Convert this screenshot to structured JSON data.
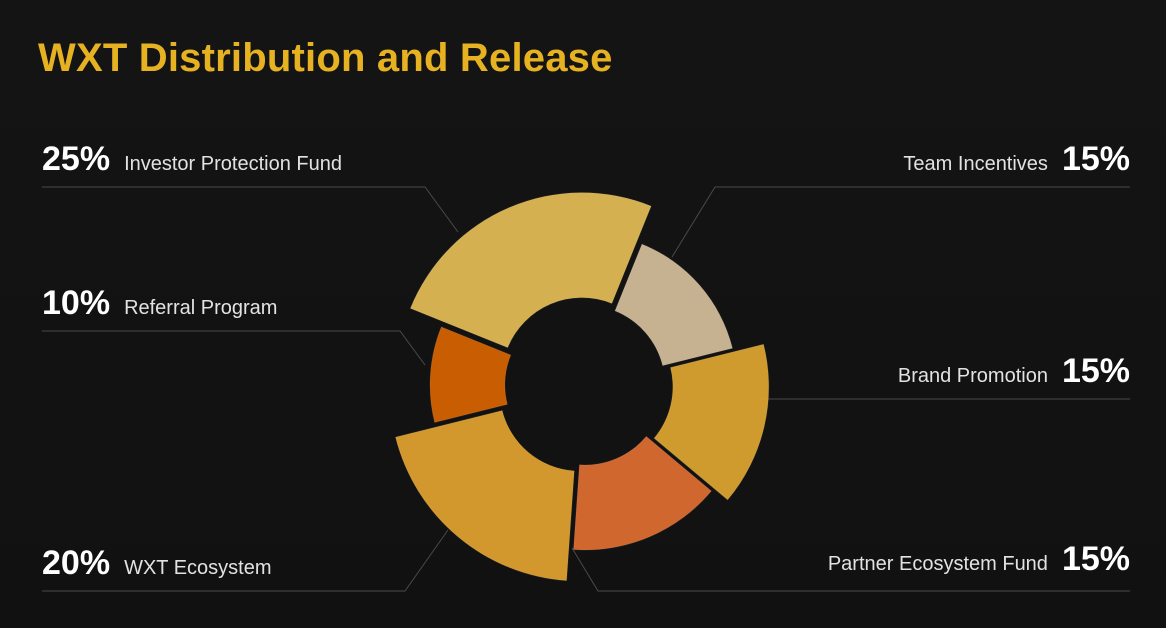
{
  "title": "WXT Distribution and Release",
  "chart_data": {
    "type": "pie",
    "variant": "donut",
    "slices": [
      {
        "label": "Investor Protection Fund",
        "value": 25,
        "value_label": "25%",
        "color": "#e3bc56",
        "side": "left"
      },
      {
        "label": "Team Incentives",
        "value": 15,
        "value_label": "15%",
        "color": "#d4bd9a",
        "side": "right"
      },
      {
        "label": "Brand Promotion",
        "value": 15,
        "value_label": "15%",
        "color": "#dea630",
        "side": "right"
      },
      {
        "label": "Partner Ecosystem Fund",
        "value": 15,
        "value_label": "15%",
        "color": "#df6e31",
        "side": "right"
      },
      {
        "label": "WXT Ecosystem",
        "value": 20,
        "value_label": "20%",
        "color": "#e1a22f",
        "side": "left"
      },
      {
        "label": "Referral Program",
        "value": 10,
        "value_label": "10%",
        "color": "#d66400",
        "side": "left"
      }
    ]
  }
}
